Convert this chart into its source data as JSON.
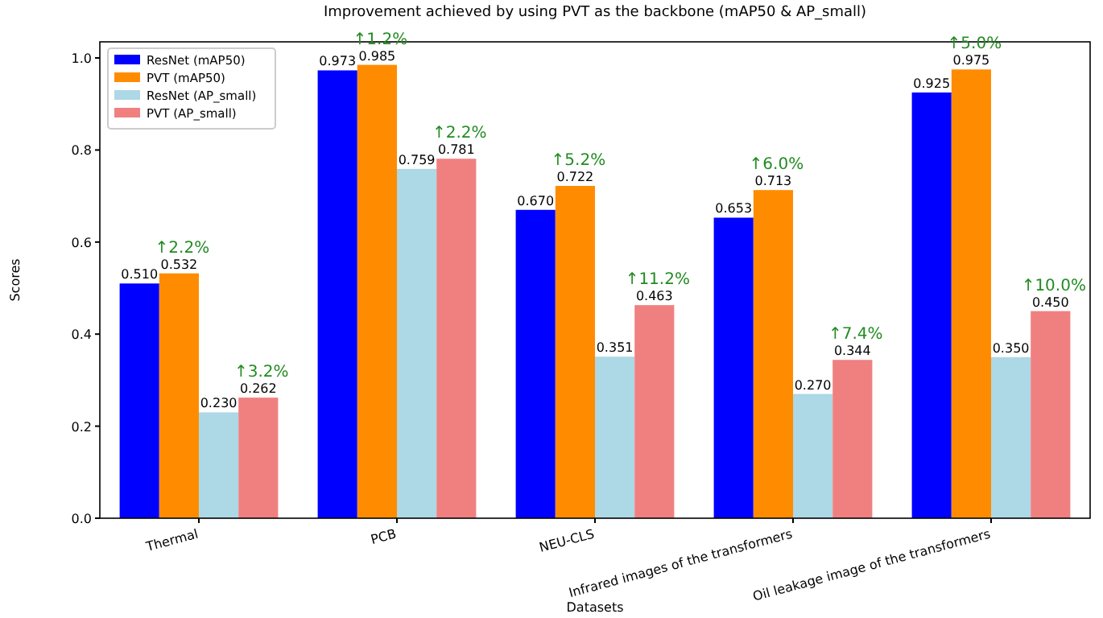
{
  "chart_data": {
    "type": "bar",
    "title": "Improvement achieved by using PVT as the backbone (mAP50 & AP_small)",
    "xlabel": "Datasets",
    "ylabel": "Scores",
    "categories": [
      "Thermal",
      "PCB",
      "NEU-CLS",
      "Infrared images of the transformers",
      "Oil leakage image of the transformers"
    ],
    "series": [
      {
        "name": "ResNet (mAP50)",
        "color": "#0000ff",
        "values": [
          0.51,
          0.973,
          0.67,
          0.653,
          0.925
        ],
        "value_labels": [
          "0.510",
          "0.973",
          "0.670",
          "0.653",
          "0.925"
        ]
      },
      {
        "name": "PVT (mAP50)",
        "color": "#ff8c00",
        "values": [
          0.532,
          0.985,
          0.722,
          0.713,
          0.975
        ],
        "value_labels": [
          "0.532",
          "0.985",
          "0.722",
          "0.713",
          "0.975"
        ]
      },
      {
        "name": "ResNet (AP_small)",
        "color": "#add8e6",
        "values": [
          0.23,
          0.759,
          0.351,
          0.27,
          0.35
        ],
        "value_labels": [
          "0.230",
          "0.759",
          "0.351",
          "0.270",
          "0.350"
        ]
      },
      {
        "name": "PVT (AP_small)",
        "color": "#f08080",
        "values": [
          0.262,
          0.781,
          0.463,
          0.344,
          0.45
        ],
        "value_labels": [
          "0.262",
          "0.781",
          "0.463",
          "0.344",
          "0.450"
        ]
      }
    ],
    "ylim": [
      0,
      1.035
    ],
    "yticks": [
      {
        "value": 0,
        "label": "0.0"
      },
      {
        "value": 0.2,
        "label": "0.2"
      },
      {
        "value": 0.4,
        "label": "0.4"
      },
      {
        "value": 0.6,
        "label": "0.6"
      },
      {
        "value": 0.8,
        "label": "0.8"
      },
      {
        "value": 1,
        "label": "1.0"
      }
    ],
    "legend": "top left",
    "grid": false,
    "annotations": [
      {
        "text": "↑2.2%",
        "x": "Thermal",
        "y": 0.532
      },
      {
        "text": "↑3.2%",
        "x": "Thermal",
        "y": 0.262
      },
      {
        "text": "↑1.2%",
        "x": "PCB",
        "y": 0.985
      },
      {
        "text": "↑2.2%",
        "x": "PCB",
        "y": 0.781
      },
      {
        "text": "↑5.2%",
        "x": "NEU-CLS",
        "y": 0.722
      },
      {
        "text": "↑11.2%",
        "x": "NEU-CLS",
        "y": 0.463
      },
      {
        "text": "↑6.0%",
        "x": "Infrared images of the transformers",
        "y": 0.713
      },
      {
        "text": "↑7.4%",
        "x": "Infrared images of the transformers",
        "y": 0.344
      },
      {
        "text": "↑5.0%",
        "x": "Oil leakage image of the transformers",
        "y": 0.975
      },
      {
        "text": "↑10.0%",
        "x": "Oil leakage image of the transformers",
        "y": 0.45
      }
    ]
  }
}
